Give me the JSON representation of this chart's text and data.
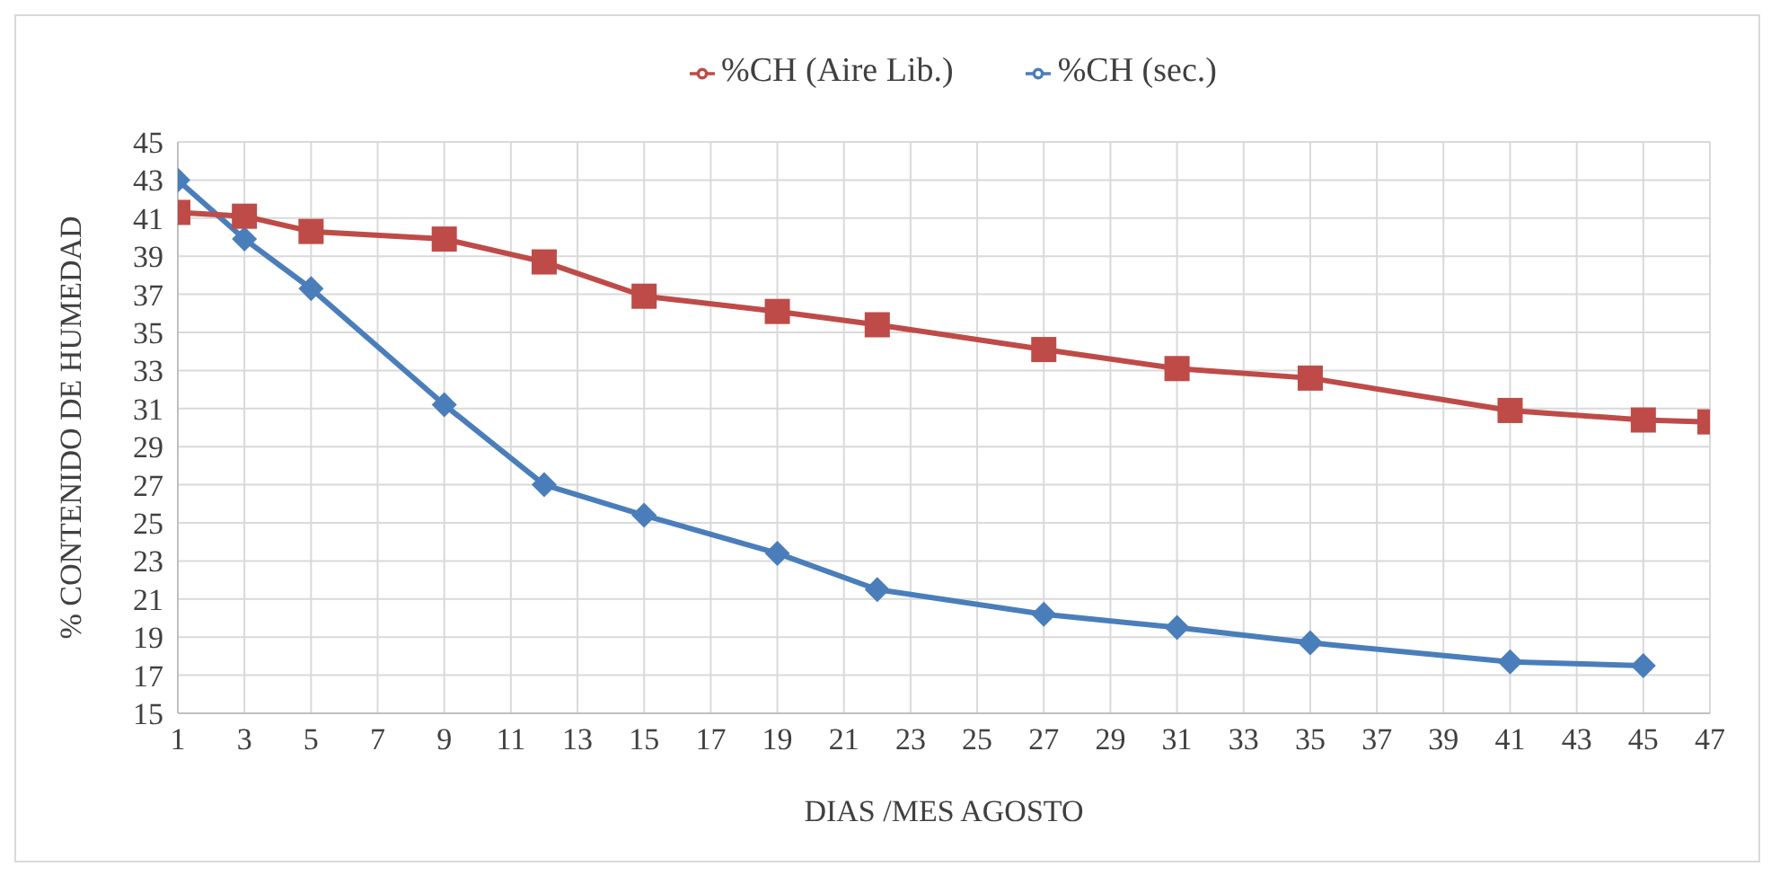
{
  "chart_data": {
    "type": "line",
    "xlabel": "DIAS /MES AGOSTO",
    "ylabel": "%  CONTENIDO DE HUMEDAD",
    "xlim": [
      1,
      47
    ],
    "xticks": [
      1,
      3,
      5,
      7,
      9,
      11,
      13,
      15,
      17,
      19,
      21,
      23,
      25,
      27,
      29,
      31,
      33,
      35,
      37,
      39,
      41,
      43,
      45,
      47
    ],
    "ylim": [
      15,
      45
    ],
    "yticks": [
      15,
      17,
      19,
      21,
      23,
      25,
      27,
      29,
      31,
      33,
      35,
      37,
      39,
      41,
      43,
      45
    ],
    "grid": true,
    "legend": "top",
    "line_style": "solid",
    "series": [
      {
        "name": "%CH (sec.)",
        "color": "#4a7ebb",
        "marker": "diamond",
        "x": [
          1,
          3,
          5,
          9,
          12,
          15,
          19,
          22,
          27,
          31,
          35,
          41,
          45
        ],
        "values": [
          43.0,
          39.9,
          37.3,
          31.2,
          27.0,
          25.4,
          23.4,
          21.5,
          20.2,
          19.5,
          18.7,
          17.7,
          17.5
        ]
      },
      {
        "name": "%CH (Aire Lib.)",
        "color": "#be4b48",
        "marker": "square",
        "x": [
          1,
          3,
          5,
          9,
          12,
          15,
          19,
          22,
          27,
          31,
          35,
          41,
          45,
          47
        ],
        "values": [
          41.3,
          41.1,
          40.3,
          39.9,
          38.7,
          36.9,
          36.1,
          35.4,
          34.1,
          33.1,
          32.6,
          30.9,
          30.4,
          30.3
        ]
      }
    ]
  }
}
